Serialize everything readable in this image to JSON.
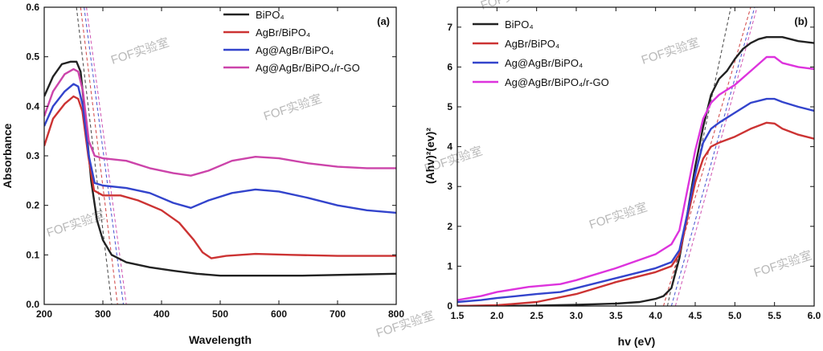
{
  "chart_data": [
    {
      "type": "line",
      "panel_label": "(a)",
      "xlabel": "Wavelength",
      "ylabel": "Absorbance",
      "xlim": [
        200,
        800
      ],
      "ylim": [
        0.0,
        0.6
      ],
      "xticks": [
        200,
        300,
        400,
        500,
        600,
        700,
        800
      ],
      "yticks": [
        0.0,
        0.1,
        0.2,
        0.3,
        0.4,
        0.5,
        0.6
      ],
      "ytick_labels": [
        "0.0",
        "0.1",
        "0.2",
        "0.3",
        "0.4",
        "0.5",
        "0.6"
      ],
      "legend_position": "top-right",
      "series": [
        {
          "name": "BiPO₄",
          "color": "#222222",
          "points": [
            [
              200,
              0.42
            ],
            [
              215,
              0.46
            ],
            [
              230,
              0.485
            ],
            [
              245,
              0.49
            ],
            [
              255,
              0.49
            ],
            [
              262,
              0.47
            ],
            [
              270,
              0.38
            ],
            [
              280,
              0.25
            ],
            [
              290,
              0.17
            ],
            [
              300,
              0.13
            ],
            [
              315,
              0.1
            ],
            [
              340,
              0.085
            ],
            [
              380,
              0.075
            ],
            [
              420,
              0.068
            ],
            [
              460,
              0.062
            ],
            [
              500,
              0.058
            ],
            [
              560,
              0.058
            ],
            [
              640,
              0.058
            ],
            [
              720,
              0.06
            ],
            [
              800,
              0.062
            ]
          ]
        },
        {
          "name": "AgBr/BiPO₄",
          "color": "#cc3333",
          "points": [
            [
              200,
              0.32
            ],
            [
              215,
              0.375
            ],
            [
              235,
              0.405
            ],
            [
              250,
              0.42
            ],
            [
              258,
              0.415
            ],
            [
              265,
              0.39
            ],
            [
              275,
              0.3
            ],
            [
              285,
              0.23
            ],
            [
              300,
              0.22
            ],
            [
              330,
              0.22
            ],
            [
              360,
              0.21
            ],
            [
              400,
              0.19
            ],
            [
              430,
              0.165
            ],
            [
              455,
              0.13
            ],
            [
              470,
              0.105
            ],
            [
              485,
              0.093
            ],
            [
              510,
              0.098
            ],
            [
              560,
              0.102
            ],
            [
              620,
              0.1
            ],
            [
              700,
              0.098
            ],
            [
              800,
              0.098
            ]
          ]
        },
        {
          "name": "Ag@AgBr/BiPO₄",
          "color": "#3344cc",
          "points": [
            [
              200,
              0.36
            ],
            [
              215,
              0.4
            ],
            [
              235,
              0.43
            ],
            [
              250,
              0.445
            ],
            [
              258,
              0.44
            ],
            [
              266,
              0.4
            ],
            [
              276,
              0.3
            ],
            [
              286,
              0.245
            ],
            [
              300,
              0.24
            ],
            [
              340,
              0.235
            ],
            [
              380,
              0.225
            ],
            [
              420,
              0.205
            ],
            [
              450,
              0.195
            ],
            [
              480,
              0.21
            ],
            [
              520,
              0.225
            ],
            [
              560,
              0.232
            ],
            [
              600,
              0.228
            ],
            [
              650,
              0.215
            ],
            [
              700,
              0.2
            ],
            [
              750,
              0.19
            ],
            [
              800,
              0.185
            ]
          ]
        },
        {
          "name": "Ag@AgBr/BiPO₄/r-GO",
          "color": "#cc44aa",
          "points": [
            [
              200,
              0.38
            ],
            [
              215,
              0.43
            ],
            [
              235,
              0.465
            ],
            [
              250,
              0.475
            ],
            [
              258,
              0.47
            ],
            [
              266,
              0.43
            ],
            [
              276,
              0.33
            ],
            [
              286,
              0.3
            ],
            [
              300,
              0.295
            ],
            [
              340,
              0.29
            ],
            [
              380,
              0.275
            ],
            [
              420,
              0.265
            ],
            [
              450,
              0.26
            ],
            [
              480,
              0.27
            ],
            [
              520,
              0.29
            ],
            [
              560,
              0.298
            ],
            [
              600,
              0.295
            ],
            [
              650,
              0.285
            ],
            [
              700,
              0.278
            ],
            [
              750,
              0.275
            ],
            [
              800,
              0.275
            ]
          ]
        }
      ],
      "tangents": [
        {
          "x1": 255,
          "y1": 0.6,
          "x2": 315,
          "y2": 0.0,
          "color": "#333333"
        },
        {
          "x1": 262,
          "y1": 0.6,
          "x2": 325,
          "y2": 0.0,
          "color": "#cc3333"
        },
        {
          "x1": 268,
          "y1": 0.6,
          "x2": 335,
          "y2": 0.0,
          "color": "#3344cc"
        },
        {
          "x1": 272,
          "y1": 0.6,
          "x2": 340,
          "y2": 0.0,
          "color": "#cc44aa"
        }
      ],
      "watermarks": [
        "FOF实验室",
        "FOF实验室",
        "FOF实验室"
      ]
    },
    {
      "type": "line",
      "panel_label": "(b)",
      "xlabel": "hv (eV)",
      "ylabel": "(Ahv)²(ev)²",
      "xlim": [
        1.5,
        6.0
      ],
      "ylim": [
        0,
        7.5
      ],
      "xticks": [
        1.5,
        2.0,
        2.5,
        3.0,
        3.5,
        4.0,
        4.5,
        5.0,
        5.5,
        6.0
      ],
      "xtick_labels": [
        "1.5",
        "2.0",
        "2.5",
        "3.0",
        "3.5",
        "4.0",
        "4.5",
        "5.0",
        "5.5",
        "6.0"
      ],
      "yticks": [
        0,
        1,
        2,
        3,
        4,
        5,
        6,
        7
      ],
      "legend_position": "top-left",
      "series": [
        {
          "name": "BiPO₄",
          "color": "#222222",
          "points": [
            [
              1.5,
              0.0
            ],
            [
              2.0,
              0.0
            ],
            [
              2.5,
              0.01
            ],
            [
              3.0,
              0.03
            ],
            [
              3.5,
              0.06
            ],
            [
              3.8,
              0.1
            ],
            [
              4.0,
              0.18
            ],
            [
              4.1,
              0.25
            ],
            [
              4.2,
              0.45
            ],
            [
              4.3,
              1.2
            ],
            [
              4.4,
              2.3
            ],
            [
              4.5,
              3.5
            ],
            [
              4.6,
              4.5
            ],
            [
              4.7,
              5.3
            ],
            [
              4.8,
              5.7
            ],
            [
              4.9,
              5.9
            ],
            [
              5.0,
              6.2
            ],
            [
              5.1,
              6.45
            ],
            [
              5.2,
              6.6
            ],
            [
              5.3,
              6.7
            ],
            [
              5.4,
              6.75
            ],
            [
              5.6,
              6.75
            ],
            [
              5.8,
              6.65
            ],
            [
              6.0,
              6.6
            ]
          ]
        },
        {
          "name": "AgBr/BiPO₄",
          "color": "#cc3333",
          "points": [
            [
              1.5,
              0.0
            ],
            [
              2.0,
              0.02
            ],
            [
              2.5,
              0.1
            ],
            [
              3.0,
              0.3
            ],
            [
              3.5,
              0.6
            ],
            [
              4.0,
              0.85
            ],
            [
              4.2,
              1.0
            ],
            [
              4.3,
              1.3
            ],
            [
              4.4,
              2.2
            ],
            [
              4.5,
              3.1
            ],
            [
              4.6,
              3.7
            ],
            [
              4.7,
              4.0
            ],
            [
              4.8,
              4.1
            ],
            [
              5.0,
              4.25
            ],
            [
              5.2,
              4.45
            ],
            [
              5.4,
              4.6
            ],
            [
              5.5,
              4.58
            ],
            [
              5.6,
              4.45
            ],
            [
              5.8,
              4.3
            ],
            [
              6.0,
              4.2
            ]
          ]
        },
        {
          "name": "Ag@AgBr/BiPO₄",
          "color": "#3344cc",
          "points": [
            [
              1.5,
              0.1
            ],
            [
              1.8,
              0.15
            ],
            [
              2.0,
              0.2
            ],
            [
              2.5,
              0.3
            ],
            [
              2.8,
              0.35
            ],
            [
              3.0,
              0.45
            ],
            [
              3.5,
              0.7
            ],
            [
              4.0,
              0.95
            ],
            [
              4.2,
              1.1
            ],
            [
              4.3,
              1.4
            ],
            [
              4.4,
              2.3
            ],
            [
              4.5,
              3.3
            ],
            [
              4.6,
              4.1
            ],
            [
              4.7,
              4.45
            ],
            [
              4.8,
              4.6
            ],
            [
              5.0,
              4.85
            ],
            [
              5.2,
              5.1
            ],
            [
              5.4,
              5.2
            ],
            [
              5.5,
              5.2
            ],
            [
              5.6,
              5.12
            ],
            [
              5.8,
              5.0
            ],
            [
              6.0,
              4.9
            ]
          ]
        },
        {
          "name": "Ag@AgBr/BiPO₄/r-GO",
          "color": "#dd33dd",
          "points": [
            [
              1.5,
              0.15
            ],
            [
              1.8,
              0.25
            ],
            [
              2.0,
              0.35
            ],
            [
              2.4,
              0.48
            ],
            [
              2.8,
              0.55
            ],
            [
              3.0,
              0.65
            ],
            [
              3.5,
              0.95
            ],
            [
              4.0,
              1.3
            ],
            [
              4.2,
              1.55
            ],
            [
              4.3,
              1.9
            ],
            [
              4.4,
              2.9
            ],
            [
              4.5,
              3.9
            ],
            [
              4.6,
              4.7
            ],
            [
              4.7,
              5.1
            ],
            [
              4.8,
              5.3
            ],
            [
              5.0,
              5.55
            ],
            [
              5.2,
              5.9
            ],
            [
              5.4,
              6.25
            ],
            [
              5.5,
              6.25
            ],
            [
              5.6,
              6.1
            ],
            [
              5.8,
              6.0
            ],
            [
              6.0,
              5.95
            ]
          ]
        }
      ],
      "tangents": [
        {
          "x1": 4.15,
          "y1": 0.0,
          "x2": 4.95,
          "y2": 7.5,
          "color": "#333333"
        },
        {
          "x1": 4.1,
          "y1": 0.0,
          "x2": 5.2,
          "y2": 7.5,
          "color": "#cc3333"
        },
        {
          "x1": 4.2,
          "y1": 0.0,
          "x2": 5.25,
          "y2": 7.5,
          "color": "#3344cc"
        },
        {
          "x1": 4.25,
          "y1": 0.0,
          "x2": 5.28,
          "y2": 7.5,
          "color": "#cc44aa"
        }
      ],
      "watermarks": [
        "FOF实验室",
        "FOF实验室",
        "FOF实验室",
        "FOF实验室",
        "FOF实验室",
        "FOF实验室"
      ]
    }
  ]
}
